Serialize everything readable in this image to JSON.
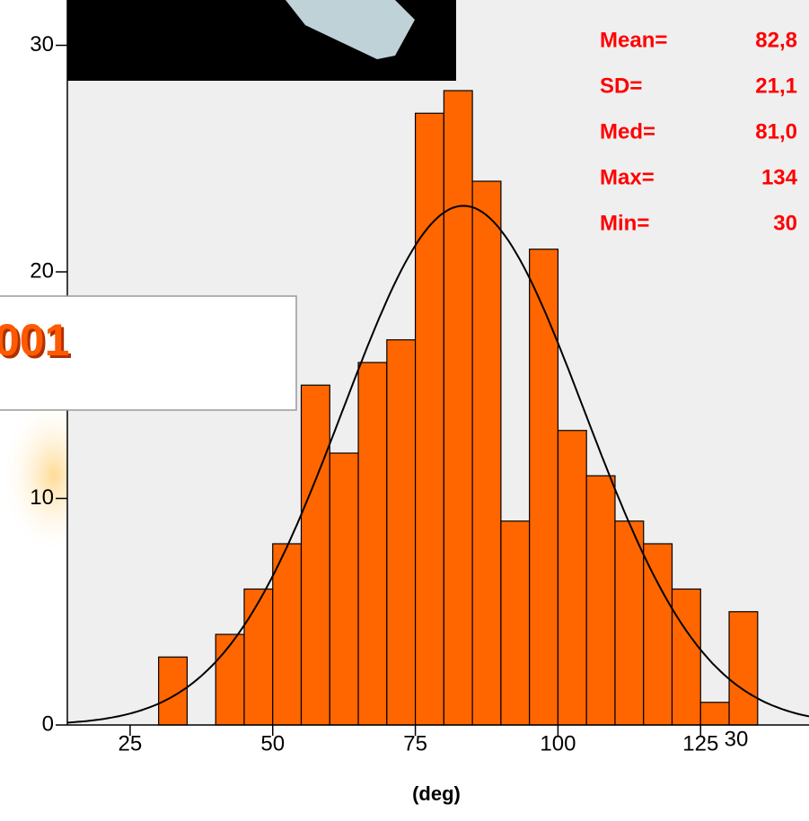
{
  "chart_data": {
    "type": "histogram",
    "bins": [
      30,
      35,
      40,
      45,
      50,
      55,
      60,
      65,
      70,
      75,
      80,
      85,
      90,
      95,
      100,
      105,
      110,
      115,
      120,
      125,
      130,
      135
    ],
    "values": [
      3,
      0,
      4,
      6,
      8,
      15,
      12,
      16,
      17,
      27,
      28,
      24,
      9,
      21,
      13,
      11,
      9,
      8,
      6,
      1,
      5
    ],
    "color": "#ff6600",
    "xlim": [
      14,
      144
    ],
    "xticks": [
      25,
      50,
      75,
      100,
      125
    ],
    "ylim": [
      0,
      32
    ],
    "yticks": [
      0,
      10,
      20,
      30
    ],
    "xlabel": "(deg)",
    "stats": [
      {
        "name": "Mean=",
        "value": "82,8"
      },
      {
        "name": "SD=",
        "value": "21,1"
      },
      {
        "name": "Med=",
        "value": "81,0"
      },
      {
        "name": "Max=",
        "value": "134"
      },
      {
        "name": "Min=",
        "value": "30"
      }
    ],
    "annotations": [
      "001",
      "30"
    ]
  }
}
